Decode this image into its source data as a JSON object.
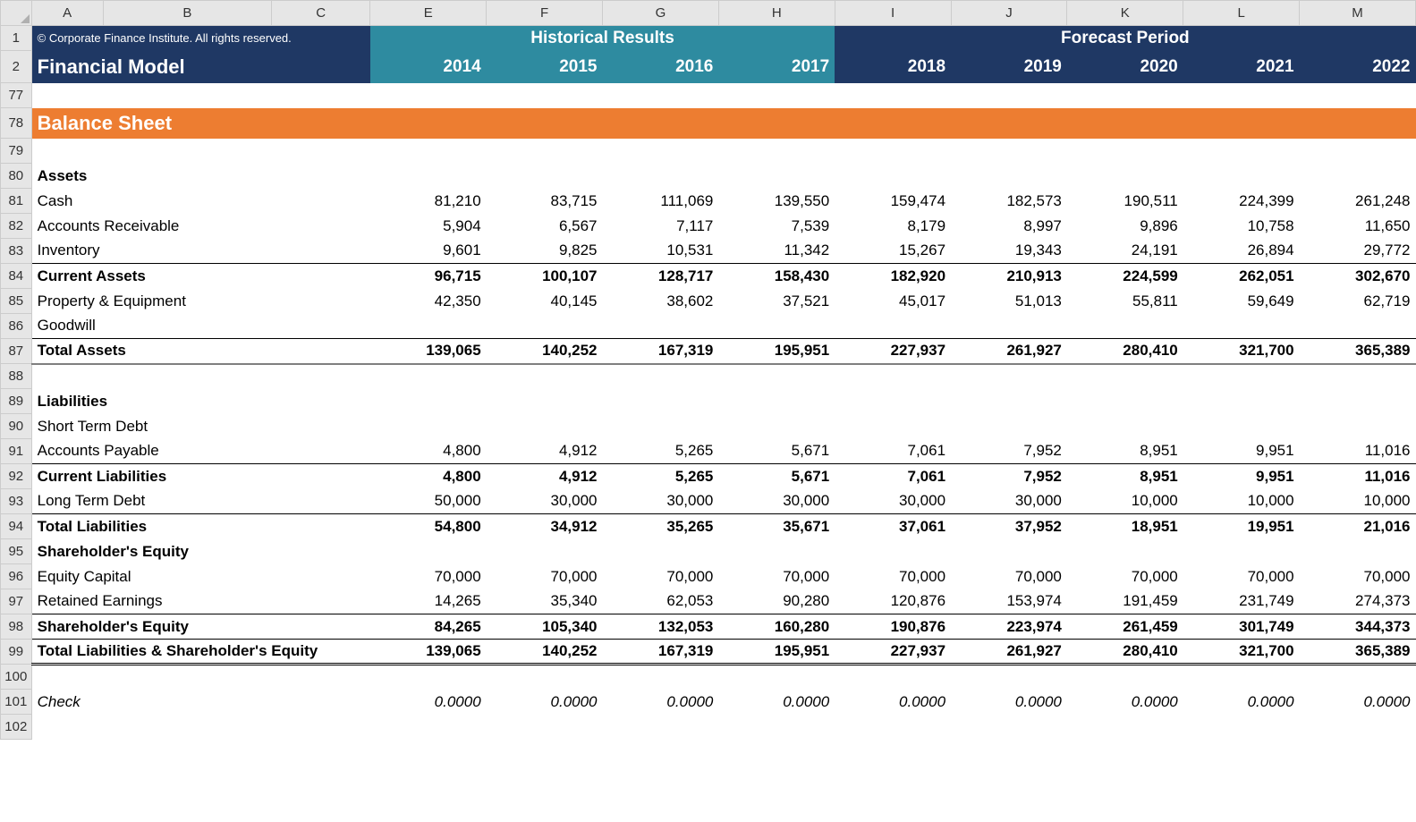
{
  "columns": [
    "A",
    "B",
    "C",
    "E",
    "F",
    "G",
    "H",
    "I",
    "J",
    "K",
    "L",
    "M"
  ],
  "copyright": "© Corporate Finance Institute. All rights reserved.",
  "model_title": "Financial Model",
  "historical_label": "Historical Results",
  "forecast_label": "Forecast Period",
  "years": [
    "2014",
    "2015",
    "2016",
    "2017",
    "2018",
    "2019",
    "2020",
    "2021",
    "2022"
  ],
  "section_title": "Balance Sheet",
  "row_numbers": [
    "1",
    "2",
    "77",
    "78",
    "79",
    "80",
    "81",
    "82",
    "83",
    "84",
    "85",
    "86",
    "87",
    "88",
    "89",
    "90",
    "91",
    "92",
    "93",
    "94",
    "95",
    "96",
    "97",
    "98",
    "99",
    "100",
    "101",
    "102"
  ],
  "rows": [
    {
      "r": "80",
      "label": "Assets",
      "bold": true,
      "vals": []
    },
    {
      "r": "81",
      "label": "Cash",
      "vals": [
        "81,210",
        "83,715",
        "111,069",
        "139,550",
        "159,474",
        "182,573",
        "190,511",
        "224,399",
        "261,248"
      ]
    },
    {
      "r": "82",
      "label": "Accounts Receivable",
      "vals": [
        "5,904",
        "6,567",
        "7,117",
        "7,539",
        "8,179",
        "8,997",
        "9,896",
        "10,758",
        "11,650"
      ]
    },
    {
      "r": "83",
      "label": "Inventory",
      "vals": [
        "9,601",
        "9,825",
        "10,531",
        "11,342",
        "15,267",
        "19,343",
        "24,191",
        "26,894",
        "29,772"
      ]
    },
    {
      "r": "84",
      "label": "Current Assets",
      "bold": true,
      "border": "thin",
      "vals": [
        "96,715",
        "100,107",
        "128,717",
        "158,430",
        "182,920",
        "210,913",
        "224,599",
        "262,051",
        "302,670"
      ]
    },
    {
      "r": "85",
      "label": "Property & Equipment",
      "vals": [
        "42,350",
        "40,145",
        "38,602",
        "37,521",
        "45,017",
        "51,013",
        "55,811",
        "59,649",
        "62,719"
      ]
    },
    {
      "r": "86",
      "label": "Goodwill",
      "vals": []
    },
    {
      "r": "87",
      "label": "Total Assets",
      "bold": true,
      "border": "thin",
      "vals": [
        "139,065",
        "140,252",
        "167,319",
        "195,951",
        "227,937",
        "261,927",
        "280,410",
        "321,700",
        "365,389"
      ]
    },
    {
      "r": "88",
      "label": "",
      "border": "thick",
      "vals": []
    },
    {
      "r": "89",
      "label": "Liabilities",
      "bold": true,
      "vals": []
    },
    {
      "r": "90",
      "label": "Short Term Debt",
      "vals": []
    },
    {
      "r": "91",
      "label": "Accounts Payable",
      "vals": [
        "4,800",
        "4,912",
        "5,265",
        "5,671",
        "7,061",
        "7,952",
        "8,951",
        "9,951",
        "11,016"
      ]
    },
    {
      "r": "92",
      "label": "Current Liabilities",
      "bold": true,
      "border": "thin",
      "vals": [
        "4,800",
        "4,912",
        "5,265",
        "5,671",
        "7,061",
        "7,952",
        "8,951",
        "9,951",
        "11,016"
      ]
    },
    {
      "r": "93",
      "label": "Long Term Debt",
      "vals": [
        "50,000",
        "30,000",
        "30,000",
        "30,000",
        "30,000",
        "30,000",
        "10,000",
        "10,000",
        "10,000"
      ]
    },
    {
      "r": "94",
      "label": "Total Liabilities",
      "bold": true,
      "border": "thin",
      "vals": [
        "54,800",
        "34,912",
        "35,265",
        "35,671",
        "37,061",
        "37,952",
        "18,951",
        "19,951",
        "21,016"
      ]
    },
    {
      "r": "95",
      "label": "Shareholder's Equity",
      "bold": true,
      "vals": []
    },
    {
      "r": "96",
      "label": "Equity Capital",
      "vals": [
        "70,000",
        "70,000",
        "70,000",
        "70,000",
        "70,000",
        "70,000",
        "70,000",
        "70,000",
        "70,000"
      ]
    },
    {
      "r": "97",
      "label": "Retained Earnings",
      "vals": [
        "14,265",
        "35,340",
        "62,053",
        "90,280",
        "120,876",
        "153,974",
        "191,459",
        "231,749",
        "274,373"
      ]
    },
    {
      "r": "98",
      "label": "Shareholder's Equity",
      "bold": true,
      "border": "thin",
      "vals": [
        "84,265",
        "105,340",
        "132,053",
        "160,280",
        "190,876",
        "223,974",
        "261,459",
        "301,749",
        "344,373"
      ]
    },
    {
      "r": "99",
      "label": "Total Liabilities & Shareholder's Equity",
      "bold": true,
      "border": "thin",
      "vals": [
        "139,065",
        "140,252",
        "167,319",
        "195,951",
        "227,937",
        "261,927",
        "280,410",
        "321,700",
        "365,389"
      ]
    },
    {
      "r": "100",
      "label": "",
      "border": "double",
      "vals": []
    },
    {
      "r": "101",
      "label": "Check",
      "italic": true,
      "vals": [
        "0.0000",
        "0.0000",
        "0.0000",
        "0.0000",
        "0.0000",
        "0.0000",
        "0.0000",
        "0.0000",
        "0.0000"
      ]
    },
    {
      "r": "102",
      "label": "",
      "vals": []
    }
  ],
  "colors": {
    "navy": "#1f3864",
    "teal": "#2e8ba0",
    "orange": "#ed7d31",
    "grid_header": "#e6e6e6"
  }
}
